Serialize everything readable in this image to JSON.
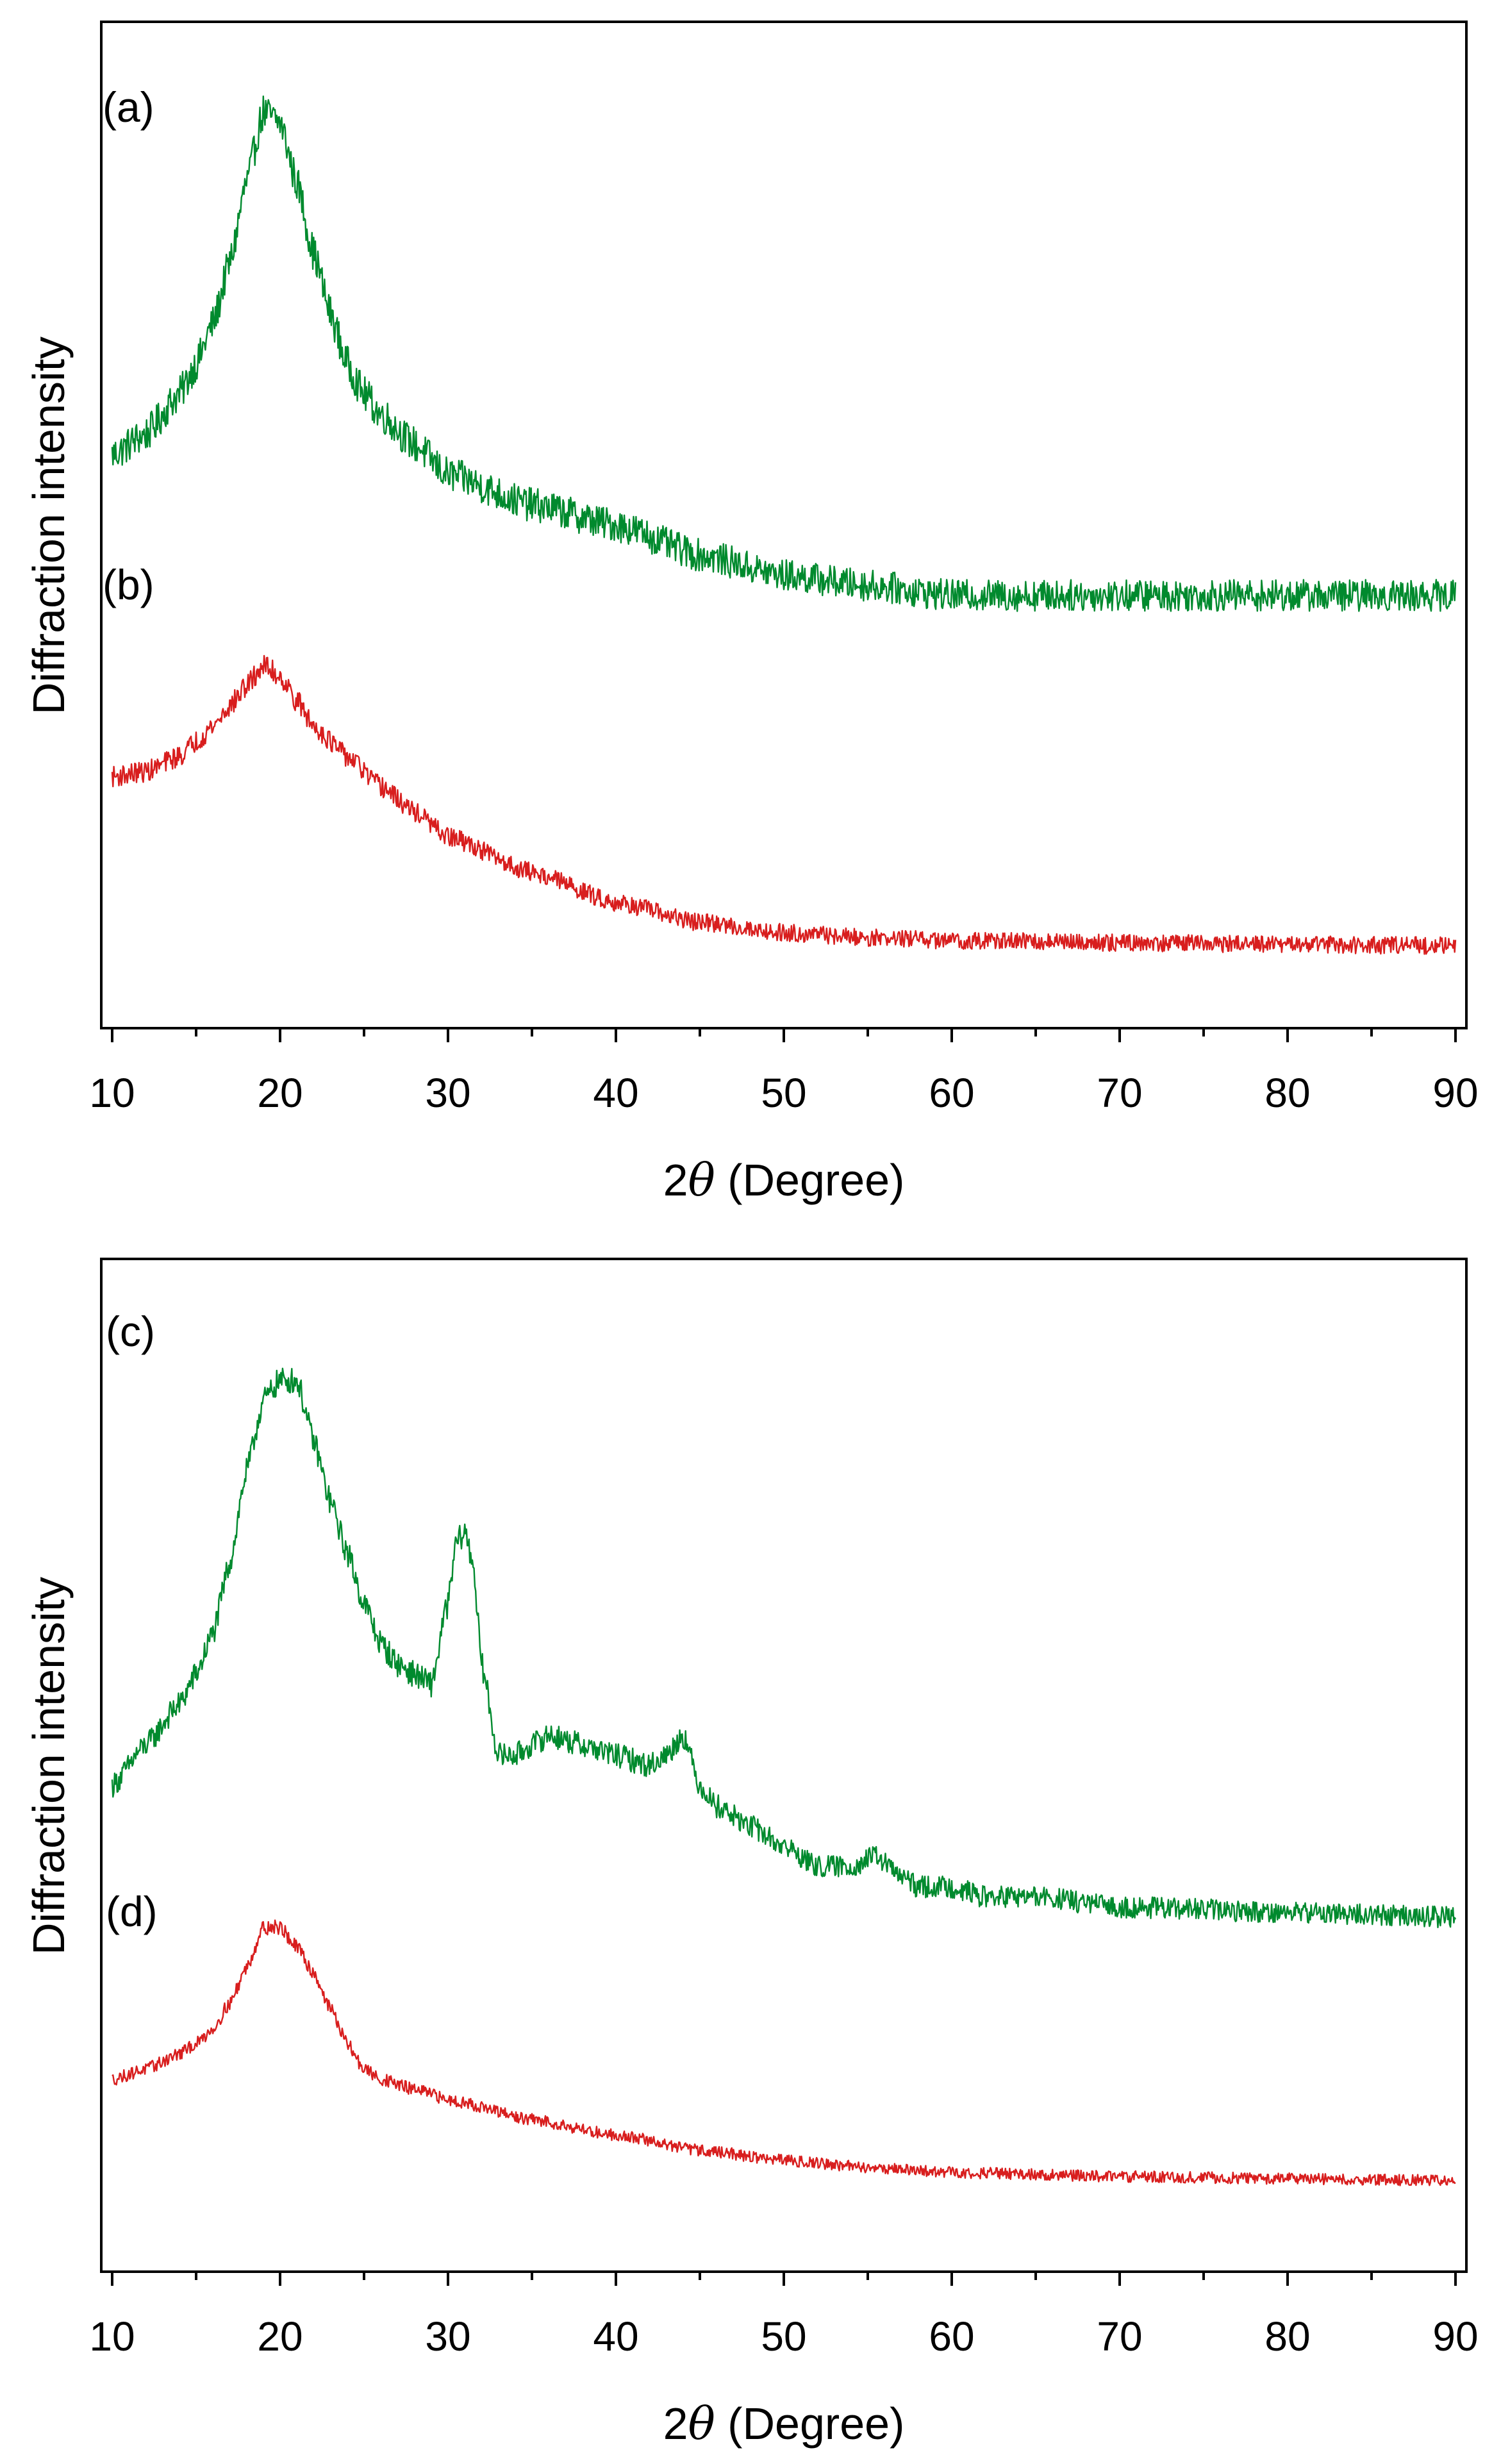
{
  "chart_data": [
    {
      "type": "line",
      "title": "",
      "xlabel_prefix": "2",
      "xlabel_symbol": "θ",
      "xlabel_rest": " (Degree)",
      "ylabel": "Diffraction intensity",
      "xlim": [
        10,
        90
      ],
      "ylim": [
        0,
        100
      ],
      "x_ticks": [
        "10",
        "20",
        "30",
        "40",
        "50",
        "60",
        "70",
        "80",
        "90"
      ],
      "y_ticks_shown": false,
      "series": [
        {
          "name": "(a)",
          "color": "#008a2e",
          "noise": 1.8,
          "x": [
            10,
            12,
            14,
            15,
            16,
            17,
            18,
            19,
            20,
            21,
            22,
            23,
            24,
            25,
            26,
            28,
            30,
            35,
            40,
            45,
            50,
            55,
            60,
            70,
            80,
            90
          ],
          "y": [
            57,
            59,
            63,
            66,
            70,
            76,
            84,
            91,
            90,
            84,
            77,
            71,
            66,
            63,
            61,
            58,
            55,
            52,
            50,
            47,
            45,
            44,
            43,
            43,
            43,
            43
          ]
        },
        {
          "name": "(b)",
          "color": "#d81e1e",
          "noise": 1.4,
          "x": [
            10,
            12,
            14,
            15,
            16,
            17,
            18,
            19,
            20,
            21,
            22,
            24,
            26,
            28,
            30,
            35,
            40,
            45,
            50,
            55,
            60,
            70,
            80,
            90
          ],
          "y": [
            25,
            25.5,
            27,
            28.5,
            30,
            32,
            34,
            36,
            35,
            32.5,
            30,
            27,
            24,
            21.5,
            19,
            15.5,
            12.5,
            10.5,
            9.5,
            9,
            8.7,
            8.5,
            8.3,
            8.2
          ]
        }
      ],
      "panel_labels": [
        "(a)",
        "(b)"
      ]
    },
    {
      "type": "line",
      "title": "",
      "xlabel_prefix": "2",
      "xlabel_symbol": "θ",
      "xlabel_rest": " (Degree)",
      "ylabel": "Diffraction intensity",
      "xlim": [
        10,
        90
      ],
      "ylim": [
        0,
        100
      ],
      "x_ticks": [
        "10",
        "20",
        "30",
        "40",
        "50",
        "60",
        "70",
        "80",
        "90"
      ],
      "y_ticks_shown": false,
      "series": [
        {
          "name": "(c)",
          "color": "#008a2e",
          "noise": 1.3,
          "x": [
            10,
            12,
            14,
            15,
            16,
            17,
            18,
            19,
            20,
            21,
            22,
            23,
            24,
            25,
            26,
            27,
            28,
            29,
            30,
            30.5,
            31,
            31.5,
            32,
            33,
            34,
            35,
            36,
            38,
            40,
            42,
            43,
            44,
            45,
            46,
            48,
            50,
            52,
            54,
            55.5,
            57,
            58,
            60,
            62,
            65,
            70,
            80,
            90
          ],
          "y": [
            48,
            52,
            56,
            59,
            63,
            70,
            79,
            86,
            88,
            88,
            82,
            76,
            71,
            66,
            62,
            60,
            59,
            58,
            66,
            72,
            73,
            70,
            60,
            51,
            51,
            52,
            53,
            52,
            51,
            50,
            51,
            53,
            48,
            46,
            44,
            42,
            40,
            40,
            41,
            39,
            38,
            38,
            37,
            37,
            36,
            35.5,
            35
          ]
        },
        {
          "name": "(d)",
          "color": "#d81e1e",
          "noise": 0.9,
          "x": [
            10,
            12,
            14,
            15,
            16,
            17,
            18,
            19,
            20,
            21,
            22,
            23,
            24,
            25,
            26,
            28,
            30,
            35,
            40,
            45,
            50,
            55,
            60,
            70,
            80,
            90
          ],
          "y": [
            19,
            20,
            21.5,
            22.5,
            24,
            26.5,
            30,
            34,
            34,
            32,
            29.5,
            26,
            22.5,
            20,
            19,
            18,
            17,
            15,
            13.5,
            12,
            11,
            10.3,
            9.8,
            9.4,
            9.2,
            9
          ]
        }
      ],
      "panel_labels": [
        "(c)",
        "(d)"
      ]
    }
  ]
}
